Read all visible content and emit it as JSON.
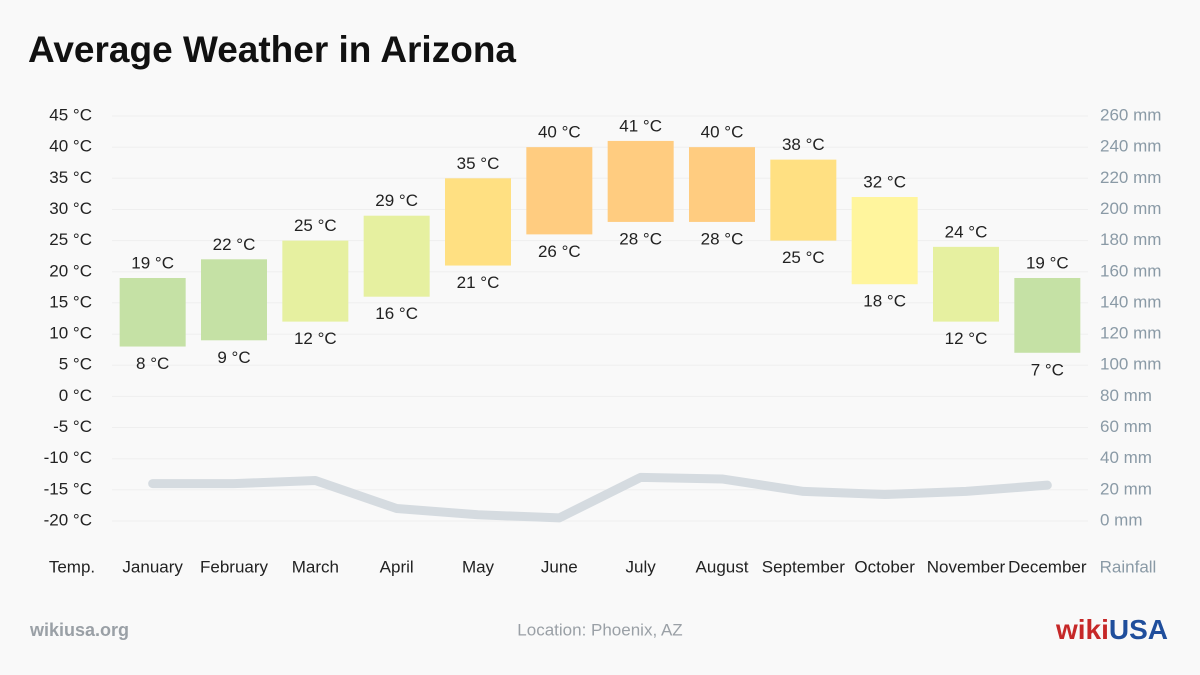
{
  "chart_data": {
    "type": "range_bar",
    "title": "Average Weather in Arizona",
    "categories": [
      "January",
      "February",
      "March",
      "April",
      "May",
      "June",
      "July",
      "August",
      "September",
      "October",
      "November",
      "December"
    ],
    "series": [
      {
        "values": [
          8,
          9,
          12,
          16,
          21,
          26,
          28,
          28,
          25,
          18,
          12,
          7
        ],
        "value_labels": [
          "8 °C",
          "9 °C",
          "12 °C",
          "16 °C",
          "21 °C",
          "26 °C",
          "28 °C",
          "28 °C",
          "25 °C",
          "18 °C",
          "12 °C",
          "7 °C"
        ]
      },
      {
        "values": [
          19,
          22,
          25,
          29,
          35,
          40,
          41,
          40,
          38,
          32,
          24,
          19
        ],
        "value_labels": [
          "19 °C",
          "22 °C",
          "25 °C",
          "29 °C",
          "35 °C",
          "40 °C",
          "41 °C",
          "40 °C",
          "38 °C",
          "32 °C",
          "24 °C",
          "19 °C"
        ]
      },
      {
        "values": [
          24,
          24,
          26,
          8,
          4,
          2,
          28,
          27,
          19,
          17,
          19,
          23
        ],
        "axis": "y2",
        "color": "#d5dbe0"
      }
    ],
    "colors": [
      "#c5e1a5",
      "#c5e1a5",
      "#e6f0a0",
      "#e6f0a0",
      "#ffe082",
      "#ffcc80",
      "#ffcc80",
      "#ffcc80",
      "#ffe082",
      "#fff59d",
      "#e6f0a0",
      "#c5e1a5"
    ],
    "y_label": "Temp.",
    "y2_label": "Rainfall",
    "ylim": [
      -20,
      45
    ],
    "yticks": [
      {
        "value": -20,
        "label": "-20 °C"
      },
      {
        "value": -15,
        "label": "-15 °C"
      },
      {
        "value": -10,
        "label": "-10 °C"
      },
      {
        "value": -5,
        "label": "-5 °C"
      },
      {
        "value": 0,
        "label": "0 °C"
      },
      {
        "value": 5,
        "label": "5 °C"
      },
      {
        "value": 10,
        "label": "10 °C"
      },
      {
        "value": 15,
        "label": "15 °C"
      },
      {
        "value": 20,
        "label": "20 °C"
      },
      {
        "value": 25,
        "label": "25 °C"
      },
      {
        "value": 30,
        "label": "30 °C"
      },
      {
        "value": 35,
        "label": "35 °C"
      },
      {
        "value": 40,
        "label": "40 °C"
      },
      {
        "value": 45,
        "label": "45 °C"
      }
    ],
    "y2lim": [
      0,
      260
    ],
    "y2ticks": [
      {
        "value": 0,
        "label": "0 mm"
      },
      {
        "value": 20,
        "label": "20 mm"
      },
      {
        "value": 40,
        "label": "40 mm"
      },
      {
        "value": 60,
        "label": "60 mm"
      },
      {
        "value": 80,
        "label": "80 mm"
      },
      {
        "value": 100,
        "label": "100 mm"
      },
      {
        "value": 120,
        "label": "120 mm"
      },
      {
        "value": 140,
        "label": "140 mm"
      },
      {
        "value": 160,
        "label": "160 mm"
      },
      {
        "value": 180,
        "label": "180 mm"
      },
      {
        "value": 200,
        "label": "200 mm"
      },
      {
        "value": 220,
        "label": "220 mm"
      },
      {
        "value": 240,
        "label": "240 mm"
      },
      {
        "value": 260,
        "label": "260 mm"
      }
    ],
    "grid": true
  },
  "footer": {
    "site": "wikiusa.org",
    "location": "Location: Phoenix, AZ",
    "logo_wiki": "wiki",
    "logo_usa": "USA"
  }
}
